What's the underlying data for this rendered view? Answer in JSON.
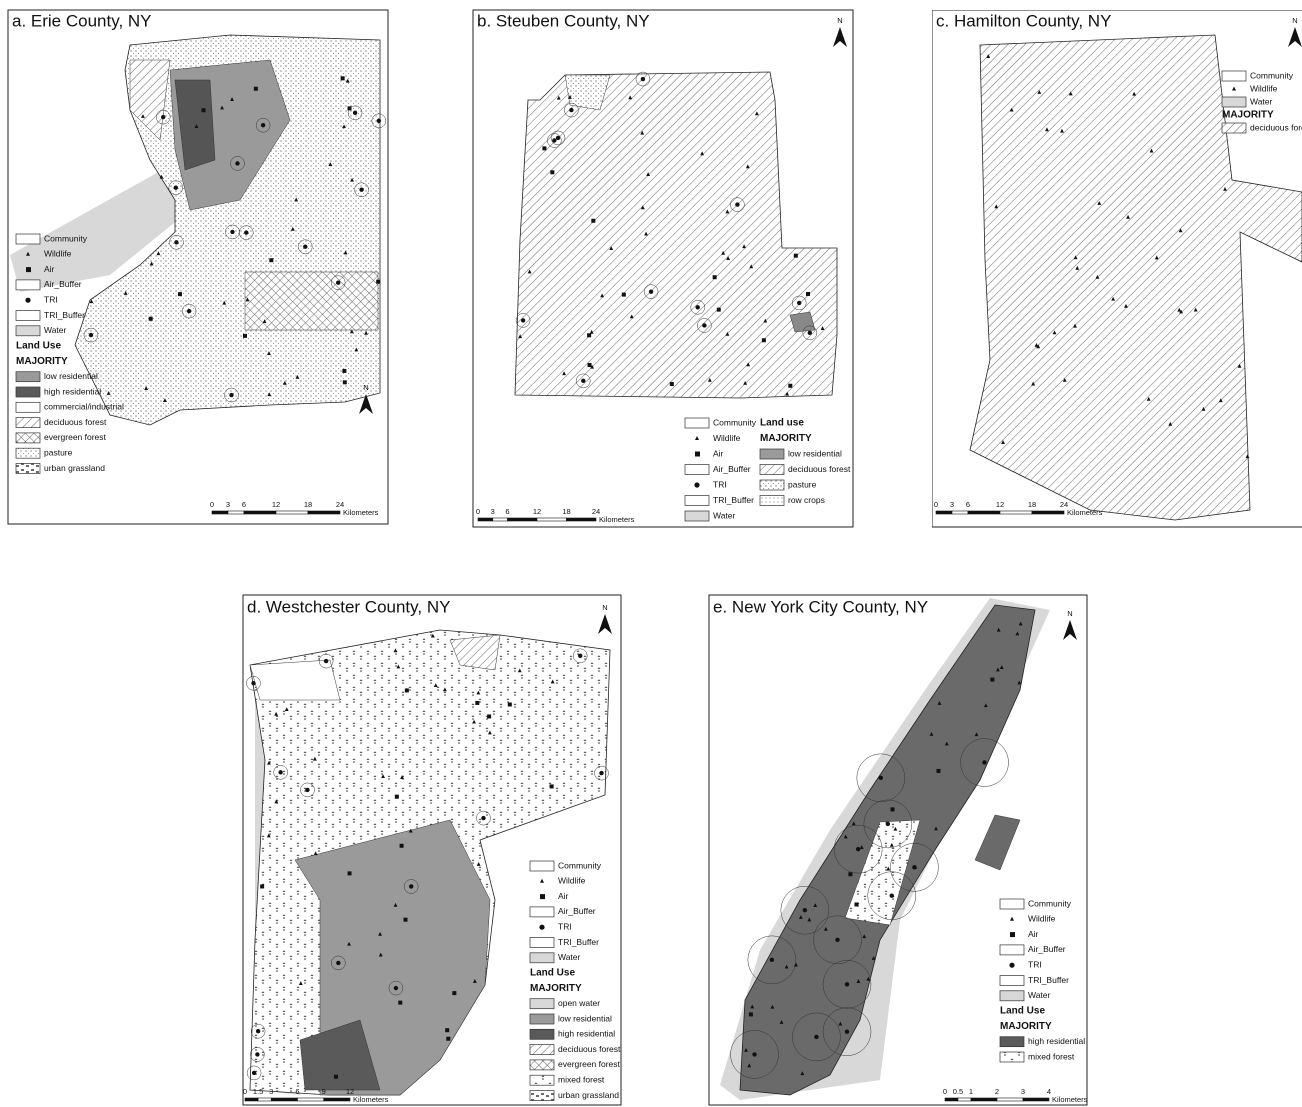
{
  "panels": [
    {
      "title": "a. Erie County, NY",
      "north": "N",
      "legend": [
        "Community",
        "Wildlife",
        "Air",
        "Air_Buffer",
        "TRI",
        "TRI_Buffer",
        "Water"
      ],
      "land_use_title": "Land Use",
      "majority": "MAJORITY",
      "land_use": [
        "low residential",
        "high residential",
        "commercial/industrial",
        "deciduous forest",
        "evergreen forest",
        "pasture",
        "urban grassland"
      ],
      "scale": [
        "0",
        "3",
        "6",
        "12",
        "18",
        "24"
      ],
      "unit": "Kilometers"
    },
    {
      "title": "b. Steuben County, NY",
      "north": "N",
      "legend": [
        "Community",
        "Wildlife",
        "Air",
        "Air_Buffer",
        "TRI",
        "TRI_Buffer",
        "Water"
      ],
      "land_use_title": "Land use",
      "majority": "MAJORITY",
      "land_use": [
        "low residential",
        "deciduous forest",
        "pasture",
        "row crops"
      ],
      "scale": [
        "0",
        "3",
        "6",
        "12",
        "18",
        "24"
      ],
      "unit": "Kilometers"
    },
    {
      "title": "c. Hamilton County, NY",
      "north": "N",
      "legend": [
        "Community",
        "Wildlife",
        "Water"
      ],
      "majority": "MAJORITY",
      "land_use": [
        "deciduous forest"
      ],
      "scale": [
        "0",
        "3",
        "6",
        "12",
        "18",
        "24"
      ],
      "unit": "Kilometers"
    },
    {
      "title": "d. Westchester County, NY",
      "north": "N",
      "legend": [
        "Community",
        "Wildlife",
        "Air",
        "Air_Buffer",
        "TRI",
        "TRI_Buffer",
        "Water"
      ],
      "land_use_title": "Land Use",
      "majority": "MAJORITY",
      "land_use": [
        "open water",
        "low residential",
        "high residential",
        "deciduous forest",
        "evergreen forest",
        "mixed forest",
        "urban grassland"
      ],
      "scale": [
        "0",
        "1.5",
        "3",
        "6",
        "9",
        "12"
      ],
      "unit": "Kilometers"
    },
    {
      "title": "e. New York City County, NY",
      "north": "N",
      "legend": [
        "Community",
        "Wildlife",
        "Air",
        "Air_Buffer",
        "TRI",
        "TRI_Buffer",
        "Water"
      ],
      "land_use_title": "Land Use",
      "majority": "MAJORITY",
      "land_use": [
        "high residential",
        "mixed forest"
      ],
      "scale": [
        "0",
        "0.5",
        "1",
        "2",
        "3",
        "4"
      ],
      "unit": "Kilometers"
    }
  ]
}
